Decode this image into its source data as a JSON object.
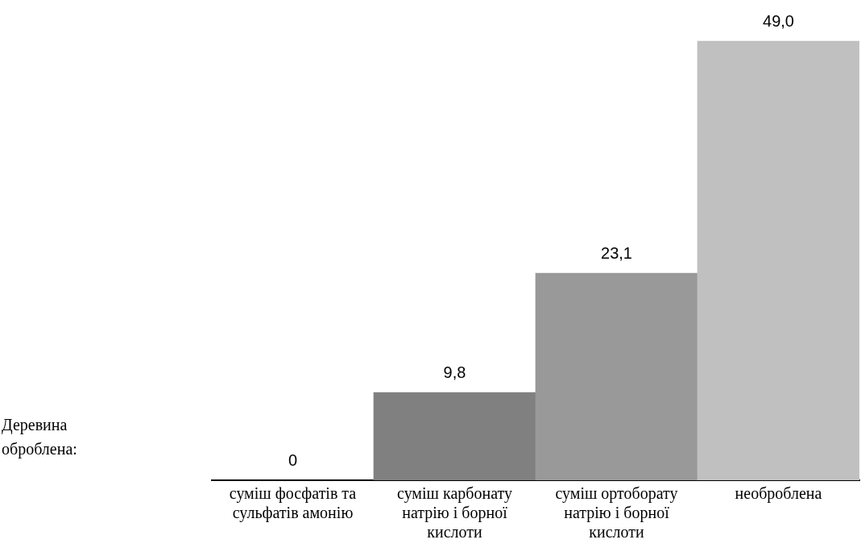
{
  "chart_data": {
    "type": "bar",
    "annotations": [
      "Деревина оброблена:"
    ],
    "categories": [
      "суміш фосфатів та сульфатів амонію",
      "суміш карбонату натрію і борної кислоти",
      "суміш ортоборату натрію і борної кислоти",
      "необроблена"
    ],
    "values": [
      0,
      9.8,
      23.1,
      49.0
    ],
    "colors": [
      "#000000",
      "#808080",
      "#999999",
      "#c0c0c0"
    ],
    "value_labels": [
      "0",
      "9,8",
      "23,1",
      "49,0"
    ],
    "grid": false,
    "legend": false
  }
}
